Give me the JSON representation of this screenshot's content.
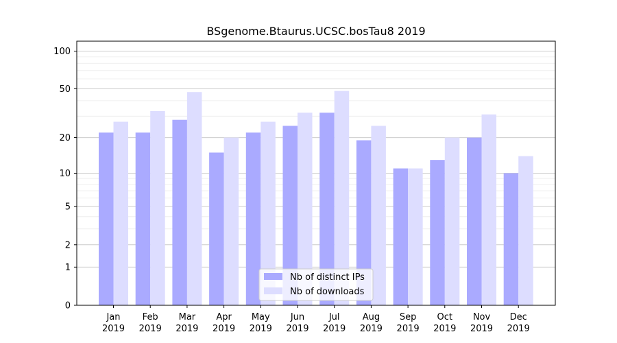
{
  "chart_data": {
    "type": "bar",
    "title": "BSgenome.Btaurus.UCSC.bosTau8 2019",
    "xlabel": "",
    "ylabel": "",
    "y_scale": "log(1+y)",
    "ylim": [
      0,
      120
    ],
    "yticks": [
      0,
      1,
      2,
      5,
      10,
      20,
      50,
      100
    ],
    "ytick_labels": [
      "0",
      "1",
      "2",
      "5",
      "10",
      "20",
      "50",
      "100"
    ],
    "categories": [
      [
        "Jan",
        "2019"
      ],
      [
        "Feb",
        "2019"
      ],
      [
        "Mar",
        "2019"
      ],
      [
        "Apr",
        "2019"
      ],
      [
        "May",
        "2019"
      ],
      [
        "Jun",
        "2019"
      ],
      [
        "Jul",
        "2019"
      ],
      [
        "Aug",
        "2019"
      ],
      [
        "Sep",
        "2019"
      ],
      [
        "Oct",
        "2019"
      ],
      [
        "Nov",
        "2019"
      ],
      [
        "Dec",
        "2019"
      ]
    ],
    "series": [
      {
        "name": "Nb of distinct IPs",
        "color": "#aaaaff",
        "values": [
          22,
          22,
          28,
          15,
          22,
          25,
          32,
          19,
          11,
          13,
          20,
          10
        ]
      },
      {
        "name": "Nb of downloads",
        "color": "#ddddff",
        "values": [
          27,
          33,
          47,
          20,
          27,
          32,
          48,
          25,
          11,
          20,
          31,
          14
        ]
      }
    ],
    "grid": {
      "y_major": true,
      "y_minor": true
    },
    "legend_position": "bottom-center"
  }
}
